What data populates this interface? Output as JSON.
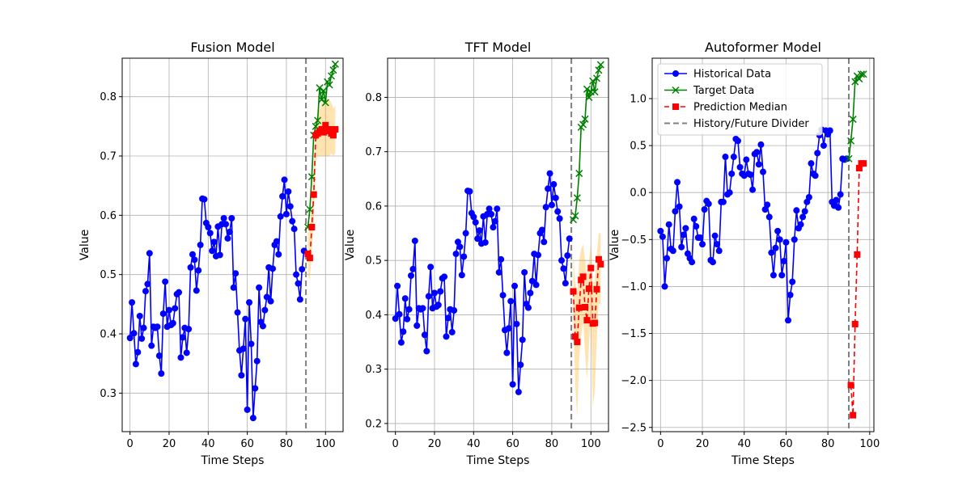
{
  "chart_data": [
    {
      "type": "line",
      "title": "Fusion Model",
      "xlabel": "Time Steps",
      "ylabel": "Value",
      "xlim": [
        -4,
        109
      ],
      "ylim": [
        0.235,
        0.865
      ],
      "xticks": [
        0,
        20,
        40,
        60,
        80,
        100
      ],
      "yticks": [
        0.3,
        0.4,
        0.5,
        0.6,
        0.7,
        0.8
      ],
      "ytick_decimals": 1,
      "grid": true,
      "divider_x": 90,
      "legend": null,
      "series": [
        {
          "name": "Historical Data",
          "role": "historical",
          "color": "#0000ff",
          "marker": "circle",
          "x": [
            0,
            1,
            2,
            3,
            4,
            5,
            6,
            7,
            8,
            9,
            10,
            11,
            12,
            13,
            14,
            15,
            16,
            17,
            18,
            19,
            20,
            21,
            22,
            23,
            24,
            25,
            26,
            27,
            28,
            29,
            30,
            31,
            32,
            33,
            34,
            35,
            36,
            37,
            38,
            39,
            40,
            41,
            42,
            43,
            44,
            45,
            46,
            47,
            48,
            49,
            50,
            51,
            52,
            53,
            54,
            55,
            56,
            57,
            58,
            59,
            60,
            61,
            62,
            63,
            64,
            65,
            66,
            67,
            68,
            69,
            70,
            71,
            72,
            73,
            74,
            75,
            76,
            77,
            78,
            79,
            80,
            81,
            82,
            83,
            84,
            85,
            86,
            87,
            88,
            89
          ],
          "y": [
            0.393,
            0.453,
            0.401,
            0.349,
            0.369,
            0.43,
            0.392,
            0.41,
            0.472,
            0.484,
            0.536,
            0.38,
            0.412,
            0.41,
            0.412,
            0.363,
            0.333,
            0.434,
            0.488,
            0.412,
            0.44,
            0.415,
            0.418,
            0.443,
            0.467,
            0.47,
            0.36,
            0.394,
            0.41,
            0.368,
            0.408,
            0.512,
            0.534,
            0.525,
            0.473,
            0.507,
            0.55,
            0.628,
            0.627,
            0.587,
            0.58,
            0.57,
            0.54,
            0.555,
            0.531,
            0.581,
            0.533,
            0.585,
            0.595,
            0.585,
            0.561,
            0.572,
            0.595,
            0.478,
            0.502,
            0.436,
            0.372,
            0.33,
            0.375,
            0.425,
            0.272,
            0.453,
            0.383,
            0.258,
            0.308,
            0.354,
            0.478,
            0.42,
            0.413,
            0.44,
            0.462,
            0.512,
            0.455,
            0.51,
            0.55,
            0.556,
            0.534,
            0.598,
            0.632,
            0.66,
            0.602,
            0.64,
            0.615,
            0.59,
            0.577,
            0.5,
            0.485,
            0.458,
            0.509,
            0.54
          ]
        },
        {
          "name": "Target Data",
          "role": "target",
          "color": "#008000",
          "marker": "x",
          "x": [
            91,
            92,
            93,
            94,
            95,
            96,
            97,
            98,
            99,
            100,
            101,
            102,
            103,
            104,
            105
          ],
          "y": [
            0.58,
            0.61,
            0.665,
            0.735,
            0.75,
            0.76,
            0.815,
            0.795,
            0.81,
            0.79,
            0.825,
            0.82,
            0.835,
            0.845,
            0.855
          ]
        },
        {
          "name": "Prediction Median",
          "role": "prediction",
          "color": "#ff0000",
          "marker": "square",
          "x": [
            91,
            92,
            93,
            94,
            95,
            96,
            97,
            98,
            99,
            100,
            101,
            102,
            103,
            104,
            105
          ],
          "y": [
            0.535,
            0.528,
            0.58,
            0.635,
            0.735,
            0.738,
            0.741,
            0.745,
            0.74,
            0.752,
            0.742,
            0.745,
            0.738,
            0.735,
            0.745
          ],
          "band_low": [
            0.5,
            0.49,
            0.54,
            0.59,
            0.69,
            0.7,
            0.7,
            0.7,
            0.7,
            0.7,
            0.7,
            0.7,
            0.705,
            0.7,
            0.705
          ],
          "band_high": [
            0.57,
            0.575,
            0.62,
            0.68,
            0.76,
            0.77,
            0.78,
            0.79,
            0.79,
            0.8,
            0.795,
            0.795,
            0.79,
            0.78,
            0.785
          ]
        }
      ]
    },
    {
      "type": "line",
      "title": "TFT Model",
      "xlabel": "Time Steps",
      "ylabel": "Value",
      "xlim": [
        -4,
        109
      ],
      "ylim": [
        0.185,
        0.872
      ],
      "xticks": [
        0,
        20,
        40,
        60,
        80,
        100
      ],
      "yticks": [
        0.2,
        0.3,
        0.4,
        0.5,
        0.6,
        0.7,
        0.8
      ],
      "ytick_decimals": 1,
      "grid": true,
      "divider_x": 90,
      "legend": null,
      "series": [
        {
          "name": "Historical Data",
          "role": "historical",
          "color": "#0000ff",
          "marker": "circle",
          "x": [
            0,
            1,
            2,
            3,
            4,
            5,
            6,
            7,
            8,
            9,
            10,
            11,
            12,
            13,
            14,
            15,
            16,
            17,
            18,
            19,
            20,
            21,
            22,
            23,
            24,
            25,
            26,
            27,
            28,
            29,
            30,
            31,
            32,
            33,
            34,
            35,
            36,
            37,
            38,
            39,
            40,
            41,
            42,
            43,
            44,
            45,
            46,
            47,
            48,
            49,
            50,
            51,
            52,
            53,
            54,
            55,
            56,
            57,
            58,
            59,
            60,
            61,
            62,
            63,
            64,
            65,
            66,
            67,
            68,
            69,
            70,
            71,
            72,
            73,
            74,
            75,
            76,
            77,
            78,
            79,
            80,
            81,
            82,
            83,
            84,
            85,
            86,
            87,
            88,
            89
          ],
          "y": [
            0.393,
            0.453,
            0.401,
            0.349,
            0.369,
            0.43,
            0.392,
            0.41,
            0.472,
            0.484,
            0.536,
            0.38,
            0.412,
            0.41,
            0.412,
            0.363,
            0.333,
            0.434,
            0.488,
            0.412,
            0.44,
            0.415,
            0.418,
            0.443,
            0.467,
            0.47,
            0.36,
            0.394,
            0.41,
            0.368,
            0.408,
            0.512,
            0.534,
            0.525,
            0.473,
            0.507,
            0.55,
            0.628,
            0.627,
            0.587,
            0.58,
            0.57,
            0.54,
            0.555,
            0.531,
            0.581,
            0.533,
            0.585,
            0.595,
            0.585,
            0.561,
            0.572,
            0.595,
            0.478,
            0.502,
            0.436,
            0.372,
            0.33,
            0.375,
            0.425,
            0.272,
            0.453,
            0.383,
            0.258,
            0.308,
            0.354,
            0.478,
            0.42,
            0.413,
            0.44,
            0.462,
            0.512,
            0.455,
            0.51,
            0.55,
            0.556,
            0.534,
            0.598,
            0.632,
            0.66,
            0.602,
            0.64,
            0.615,
            0.59,
            0.577,
            0.5,
            0.485,
            0.458,
            0.509,
            0.54
          ]
        },
        {
          "name": "Target Data",
          "role": "target",
          "color": "#008000",
          "marker": "x",
          "x": [
            91,
            92,
            93,
            94,
            95,
            96,
            97,
            98,
            99,
            100,
            101,
            102,
            103,
            104,
            105
          ],
          "y": [
            0.575,
            0.582,
            0.615,
            0.66,
            0.745,
            0.75,
            0.76,
            0.815,
            0.8,
            0.81,
            0.83,
            0.81,
            0.835,
            0.85,
            0.86
          ]
        },
        {
          "name": "Prediction Median",
          "role": "prediction",
          "color": "#ff0000",
          "marker": "square",
          "x": [
            91,
            92,
            93,
            94,
            95,
            96,
            97,
            98,
            99,
            100,
            101,
            102,
            103,
            104,
            105
          ],
          "y": [
            0.443,
            0.36,
            0.35,
            0.413,
            0.464,
            0.47,
            0.414,
            0.39,
            0.448,
            0.486,
            0.384,
            0.385,
            0.447,
            0.502,
            0.493
          ],
          "band_low": [
            0.39,
            0.27,
            0.21,
            0.32,
            0.36,
            0.39,
            0.33,
            0.28,
            0.34,
            0.4,
            0.23,
            0.26,
            0.35,
            0.42,
            0.42
          ],
          "band_high": [
            0.51,
            0.46,
            0.44,
            0.5,
            0.52,
            0.53,
            0.5,
            0.47,
            0.5,
            0.53,
            0.46,
            0.46,
            0.51,
            0.55,
            0.55
          ]
        }
      ]
    },
    {
      "type": "line",
      "title": "Autoformer Model",
      "xlabel": "Time Steps",
      "ylabel": "Value",
      "xlim": [
        -4,
        102
      ],
      "ylim": [
        -2.545,
        1.43
      ],
      "xticks": [
        0,
        20,
        40,
        60,
        80,
        100
      ],
      "yticks": [
        1.0,
        0.5,
        0.0,
        -0.5,
        -1.0,
        -1.5,
        -2.0,
        -2.5
      ],
      "ytick_decimals": 1,
      "grid": true,
      "divider_x": 90,
      "legend": {
        "position": "upper-left",
        "entries": [
          "Historical Data",
          "Target Data",
          "Prediction Median",
          "History/Future Divider"
        ]
      },
      "series": [
        {
          "name": "Historical Data",
          "role": "historical",
          "color": "#0000ff",
          "marker": "circle",
          "x": [
            0,
            1,
            2,
            3,
            4,
            5,
            6,
            7,
            8,
            9,
            10,
            11,
            12,
            13,
            14,
            15,
            16,
            17,
            18,
            19,
            20,
            21,
            22,
            23,
            24,
            25,
            26,
            27,
            28,
            29,
            30,
            31,
            32,
            33,
            34,
            35,
            36,
            37,
            38,
            39,
            40,
            41,
            42,
            43,
            44,
            45,
            46,
            47,
            48,
            49,
            50,
            51,
            52,
            53,
            54,
            55,
            56,
            57,
            58,
            59,
            60,
            61,
            62,
            63,
            64,
            65,
            66,
            67,
            68,
            69,
            70,
            71,
            72,
            73,
            74,
            75,
            76,
            77,
            78,
            79,
            80,
            81,
            82,
            83,
            84,
            85,
            86,
            87,
            88,
            89
          ],
          "y": [
            -0.41,
            -0.47,
            -1.0,
            -0.7,
            -0.34,
            -0.6,
            -0.62,
            -0.2,
            0.11,
            -0.15,
            -0.58,
            -0.45,
            -0.38,
            -0.65,
            -0.7,
            -0.74,
            -0.28,
            -0.36,
            -0.48,
            -0.48,
            -0.55,
            -0.18,
            -0.09,
            -0.12,
            -0.72,
            -0.74,
            -0.46,
            -0.55,
            -0.62,
            -0.1,
            -0.1,
            0.38,
            -0.02,
            0.0,
            0.2,
            0.38,
            0.57,
            0.55,
            0.27,
            0.2,
            0.18,
            0.35,
            0.2,
            0.19,
            0.03,
            0.41,
            0.43,
            0.3,
            0.51,
            0.22,
            -0.18,
            -0.13,
            -0.26,
            -0.64,
            -0.88,
            -0.59,
            -0.41,
            -0.5,
            -0.88,
            -0.73,
            -0.53,
            -1.36,
            -1.09,
            -0.95,
            -0.5,
            -0.19,
            -0.38,
            -0.34,
            -0.26,
            -0.2,
            -0.1,
            -0.05,
            0.31,
            0.2,
            0.18,
            0.42,
            0.61,
            0.67,
            0.5,
            0.66,
            0.62,
            0.66,
            -0.1,
            -0.14,
            -0.08,
            -0.16,
            -0.02,
            0.36,
            0.35,
            0.36
          ]
        },
        {
          "name": "Target Data",
          "role": "target",
          "color": "#008000",
          "marker": "x",
          "x": [
            90,
            91,
            92,
            93,
            94,
            95,
            96,
            97
          ],
          "y": [
            0.36,
            0.55,
            0.78,
            1.18,
            1.24,
            1.21,
            1.26,
            1.26
          ]
        },
        {
          "name": "Prediction Median",
          "role": "prediction",
          "color": "#ff0000",
          "marker": "square",
          "x": [
            91,
            92,
            93,
            94,
            95,
            96,
            97
          ],
          "y": [
            -2.05,
            -2.37,
            -1.4,
            -0.66,
            0.26,
            0.31,
            0.31
          ]
        }
      ]
    }
  ],
  "legend_labels": {
    "historical": "Historical Data",
    "target": "Target Data",
    "prediction": "Prediction Median",
    "divider": "History/Future Divider"
  },
  "colors": {
    "historical": "#0000ff",
    "target": "#008000",
    "prediction": "#ff0000",
    "band": "#ffa500",
    "divider": "#808080",
    "grid": "#b0b0b0"
  }
}
